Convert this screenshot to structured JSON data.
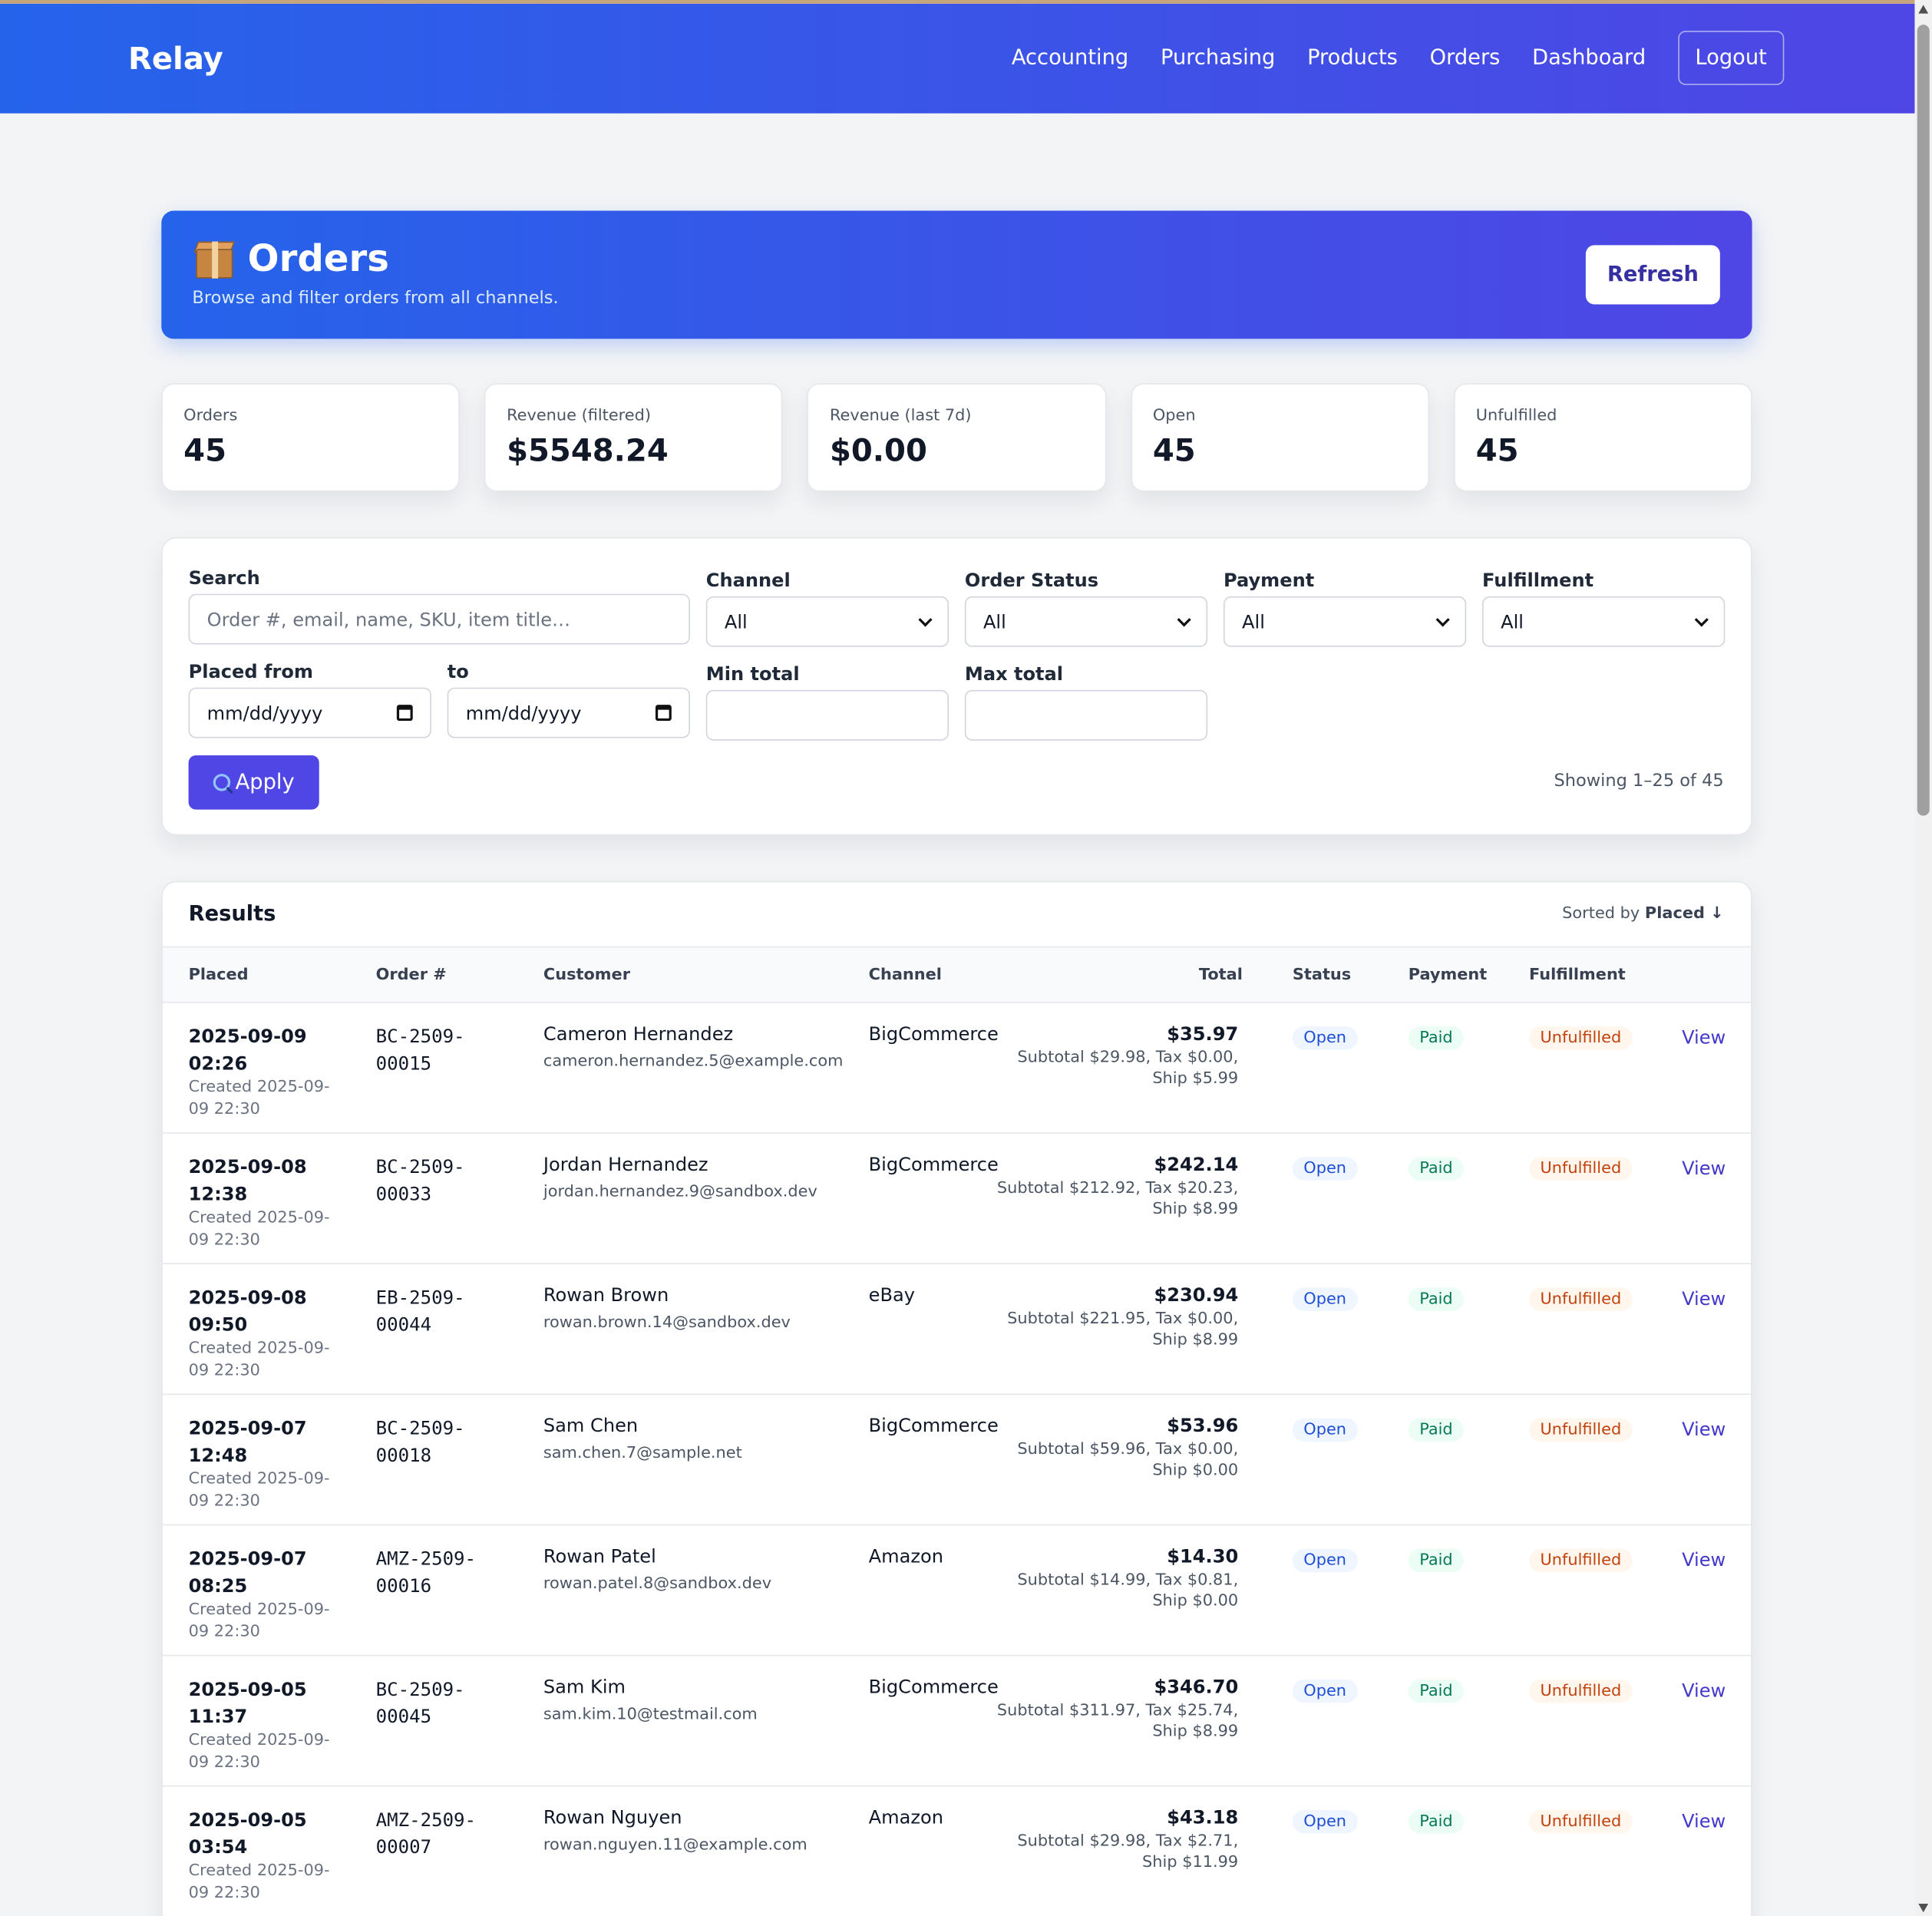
{
  "nav": {
    "brand": "Relay",
    "links": [
      "Accounting",
      "Purchasing",
      "Products",
      "Orders",
      "Dashboard"
    ],
    "logout": "Logout"
  },
  "hero": {
    "title": "Orders",
    "subtitle": "Browse and filter orders from all channels.",
    "refresh": "Refresh",
    "icon": "package-icon"
  },
  "stats": [
    {
      "label": "Orders",
      "value": "45"
    },
    {
      "label": "Revenue (filtered)",
      "value": "$5548.24"
    },
    {
      "label": "Revenue (last 7d)",
      "value": "$0.00"
    },
    {
      "label": "Open",
      "value": "45"
    },
    {
      "label": "Unfulfilled",
      "value": "45"
    }
  ],
  "filters": {
    "search_label": "Search",
    "search_placeholder": "Order #, email, name, SKU, item title…",
    "channel_label": "Channel",
    "channel_value": "All",
    "status_label": "Order Status",
    "status_value": "All",
    "payment_label": "Payment",
    "payment_value": "All",
    "fulfillment_label": "Fulfillment",
    "fulfillment_value": "All",
    "placed_from_label": "Placed from",
    "placed_from_value": "mm/dd/yyyy",
    "to_label": "to",
    "to_value": "mm/dd/yyyy",
    "min_total_label": "Min total",
    "max_total_label": "Max total",
    "apply": "Apply",
    "showing": "Showing 1–25 of 45"
  },
  "results": {
    "title": "Results",
    "sorted_prefix": "Sorted by",
    "sorted_field": "Placed ↓",
    "columns": {
      "placed": "Placed",
      "order": "Order #",
      "customer": "Customer",
      "channel": "Channel",
      "total": "Total",
      "status": "Status",
      "payment": "Payment",
      "fulfillment": "Fulfillment"
    },
    "view_label": "View",
    "rows": [
      {
        "placed": "2025-09-09 02:26",
        "created": "Created 2025-09-09 22:30",
        "order": "BC-2509-00015",
        "name": "Cameron Hernandez",
        "email": "cameron.hernandez.5@example.com",
        "channel": "BigCommerce",
        "total": "$35.97",
        "breakdown": "Subtotal $29.98, Tax $0.00, Ship $5.99",
        "status": "Open",
        "payment": "Paid",
        "fulfillment": "Unfulfilled"
      },
      {
        "placed": "2025-09-08 12:38",
        "created": "Created 2025-09-09 22:30",
        "order": "BC-2509-00033",
        "name": "Jordan Hernandez",
        "email": "jordan.hernandez.9@sandbox.dev",
        "channel": "BigCommerce",
        "total": "$242.14",
        "breakdown": "Subtotal $212.92, Tax $20.23, Ship $8.99",
        "status": "Open",
        "payment": "Paid",
        "fulfillment": "Unfulfilled"
      },
      {
        "placed": "2025-09-08 09:50",
        "created": "Created 2025-09-09 22:30",
        "order": "EB-2509-00044",
        "name": "Rowan Brown",
        "email": "rowan.brown.14@sandbox.dev",
        "channel": "eBay",
        "total": "$230.94",
        "breakdown": "Subtotal $221.95, Tax $0.00, Ship $8.99",
        "status": "Open",
        "payment": "Paid",
        "fulfillment": "Unfulfilled"
      },
      {
        "placed": "2025-09-07 12:48",
        "created": "Created 2025-09-09 22:30",
        "order": "BC-2509-00018",
        "name": "Sam Chen",
        "email": "sam.chen.7@sample.net",
        "channel": "BigCommerce",
        "total": "$53.96",
        "breakdown": "Subtotal $59.96, Tax $0.00, Ship $0.00",
        "status": "Open",
        "payment": "Paid",
        "fulfillment": "Unfulfilled"
      },
      {
        "placed": "2025-09-07 08:25",
        "created": "Created 2025-09-09 22:30",
        "order": "AMZ-2509-00016",
        "name": "Rowan Patel",
        "email": "rowan.patel.8@sandbox.dev",
        "channel": "Amazon",
        "total": "$14.30",
        "breakdown": "Subtotal $14.99, Tax $0.81, Ship $0.00",
        "status": "Open",
        "payment": "Paid",
        "fulfillment": "Unfulfilled"
      },
      {
        "placed": "2025-09-05 11:37",
        "created": "Created 2025-09-09 22:30",
        "order": "BC-2509-00045",
        "name": "Sam Kim",
        "email": "sam.kim.10@testmail.com",
        "channel": "BigCommerce",
        "total": "$346.70",
        "breakdown": "Subtotal $311.97, Tax $25.74, Ship $8.99",
        "status": "Open",
        "payment": "Paid",
        "fulfillment": "Unfulfilled"
      },
      {
        "placed": "2025-09-05 03:54",
        "created": "Created 2025-09-09 22:30",
        "order": "AMZ-2509-00007",
        "name": "Rowan Nguyen",
        "email": "rowan.nguyen.11@example.com",
        "channel": "Amazon",
        "total": "$43.18",
        "breakdown": "Subtotal $29.98, Tax $2.71, Ship $11.99",
        "status": "Open",
        "payment": "Paid",
        "fulfillment": "Unfulfilled"
      }
    ]
  }
}
